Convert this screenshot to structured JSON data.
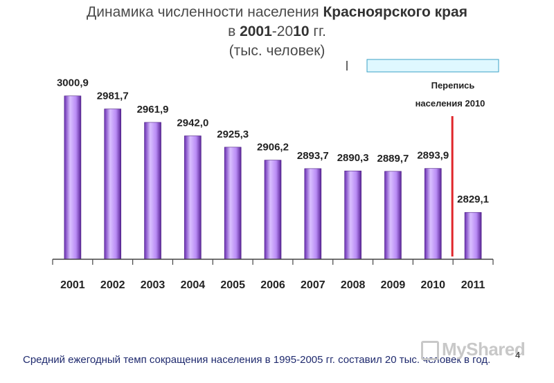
{
  "title": {
    "line1_prefix": "Динамика численности населения ",
    "line1_bold": "Красноярского края",
    "line2_prefix": "в ",
    "line2_bold1": "2001",
    "line2_mid": "-20",
    "line2_bold2": "10",
    "line2_suffix": " гг.",
    "line3": "(тыс. человек)"
  },
  "census_label": [
    "Перепись",
    "населения 2010"
  ],
  "footer_note": "Средний ежегодный темп сокращения населения в 1995-2005 гг. составил 20 тыс. человек в год.",
  "page_number": "4",
  "watermark": "MyShared",
  "colors": {
    "bar_light": "#d9bfff",
    "bar_dark": "#6a2fb3",
    "census_line": "#e0262a",
    "box_fill": "#dff8ff",
    "box_border": "#3aa0c4"
  },
  "chart_data": {
    "type": "bar",
    "categories": [
      "2001",
      "2002",
      "2003",
      "2004",
      "2005",
      "2006",
      "2007",
      "2008",
      "2009",
      "2010",
      "2011"
    ],
    "values": [
      3000.9,
      2981.7,
      2961.9,
      2942.0,
      2925.3,
      2906.2,
      2893.7,
      2890.3,
      2889.7,
      2893.9,
      2829.1
    ],
    "value_labels": [
      "3000,9",
      "2981,7",
      "2961,9",
      "2942,0",
      "2925,3",
      "2906,2",
      "2893,7",
      "2890,3",
      "2889,7",
      "2893,9",
      "2829,1"
    ],
    "ylim": [
      2760,
      3020
    ],
    "xlabel": "",
    "ylabel": "",
    "grid": false,
    "annotation": "census line between 2010 and 2011"
  }
}
